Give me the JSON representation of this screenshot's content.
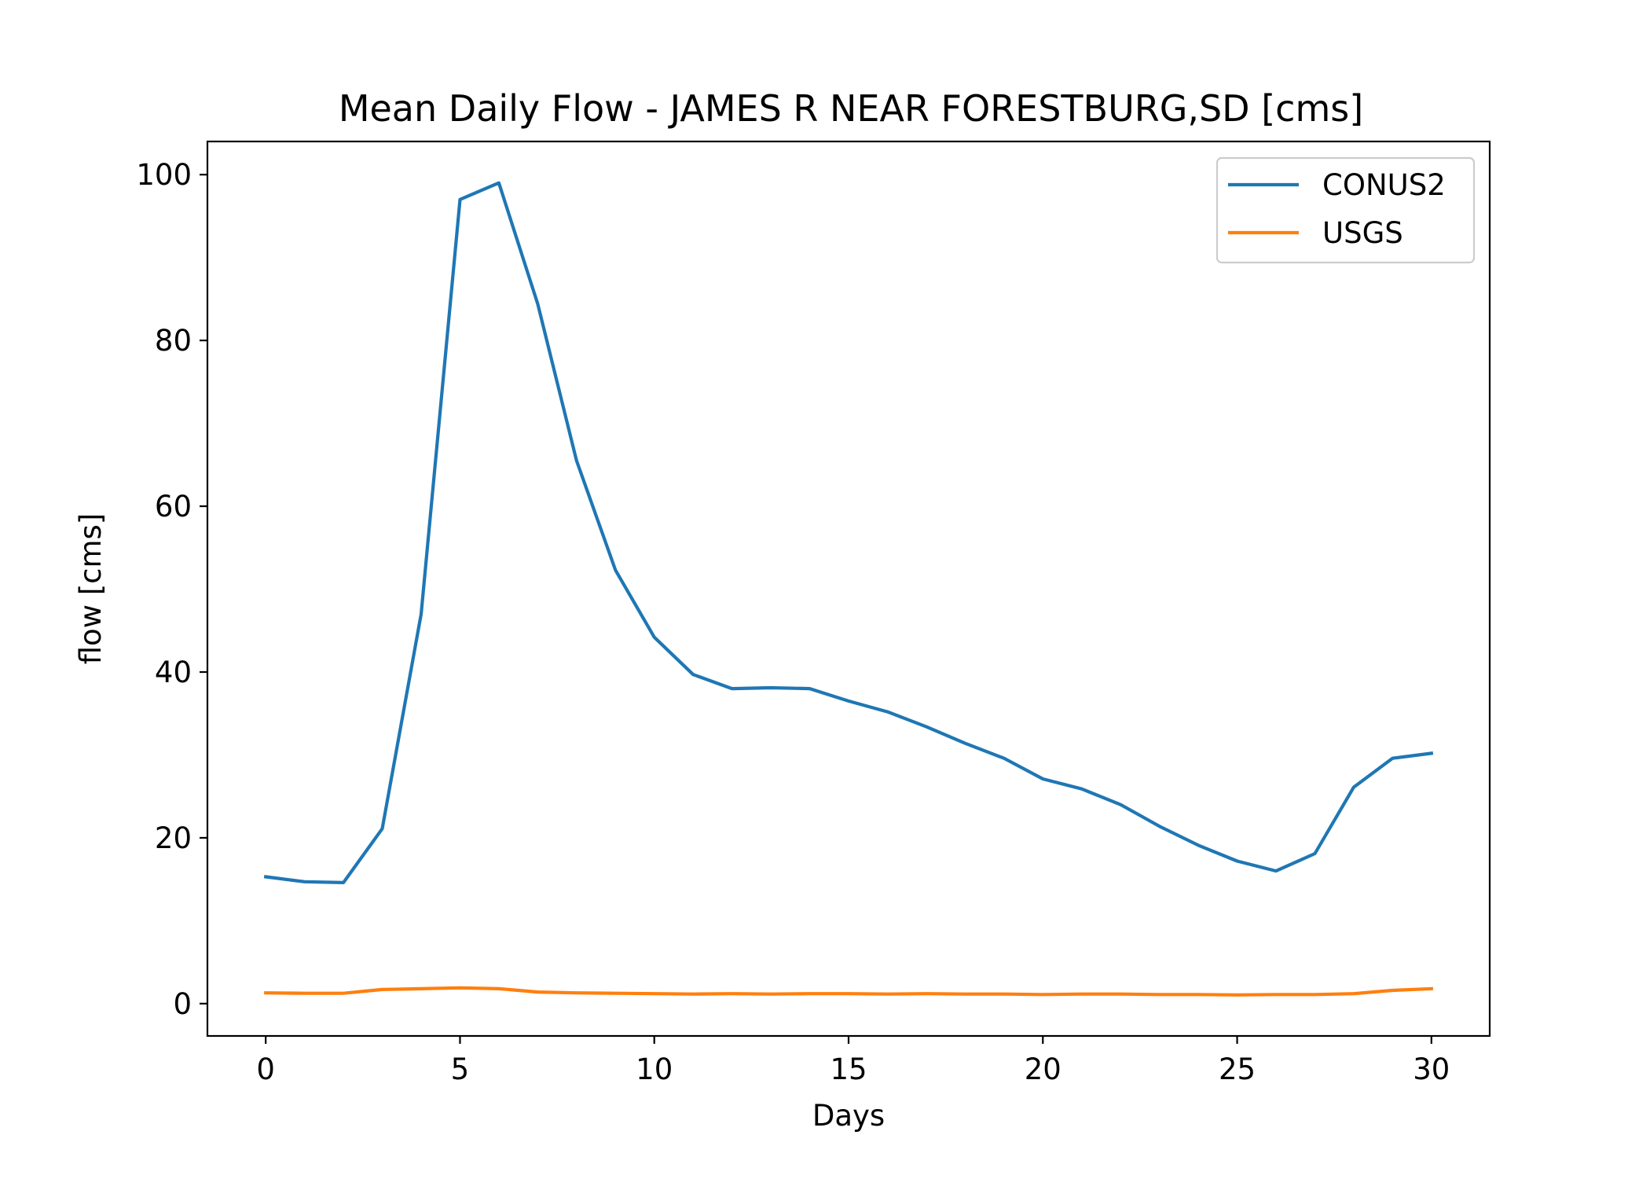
{
  "chart_data": {
    "type": "line",
    "title": "Mean Daily Flow - JAMES R NEAR FORESTBURG,SD [cms]",
    "xlabel": "Days",
    "ylabel": "flow [cms]",
    "xlim": [
      -1.5,
      31.5
    ],
    "ylim": [
      -3.9,
      104.0
    ],
    "xticks": [
      0,
      5,
      10,
      15,
      20,
      25,
      30
    ],
    "yticks": [
      0,
      20,
      40,
      60,
      80,
      100
    ],
    "grid": false,
    "legend_position": "top-right",
    "x": [
      0,
      1,
      2,
      3,
      4,
      5,
      6,
      7,
      8,
      9,
      10,
      11,
      12,
      13,
      14,
      15,
      16,
      17,
      18,
      19,
      20,
      21,
      22,
      23,
      24,
      25,
      26,
      27,
      28,
      29,
      30
    ],
    "series": [
      {
        "name": "CONUS2",
        "color": "#1f77b4",
        "values": [
          15.3,
          14.7,
          14.6,
          21.1,
          47.0,
          97.0,
          99.0,
          84.4,
          65.5,
          52.3,
          44.2,
          39.7,
          38.0,
          38.1,
          38.0,
          36.5,
          35.2,
          33.4,
          31.4,
          29.6,
          27.1,
          25.9,
          24.0,
          21.4,
          19.1,
          17.2,
          16.0,
          18.1,
          26.1,
          29.6,
          30.2
        ]
      },
      {
        "name": "USGS",
        "color": "#ff7f0e",
        "values": [
          1.3,
          1.25,
          1.25,
          1.7,
          1.8,
          1.9,
          1.8,
          1.4,
          1.3,
          1.25,
          1.2,
          1.15,
          1.2,
          1.15,
          1.2,
          1.2,
          1.15,
          1.2,
          1.15,
          1.15,
          1.1,
          1.15,
          1.15,
          1.1,
          1.1,
          1.05,
          1.1,
          1.1,
          1.2,
          1.6,
          1.8
        ]
      }
    ]
  }
}
